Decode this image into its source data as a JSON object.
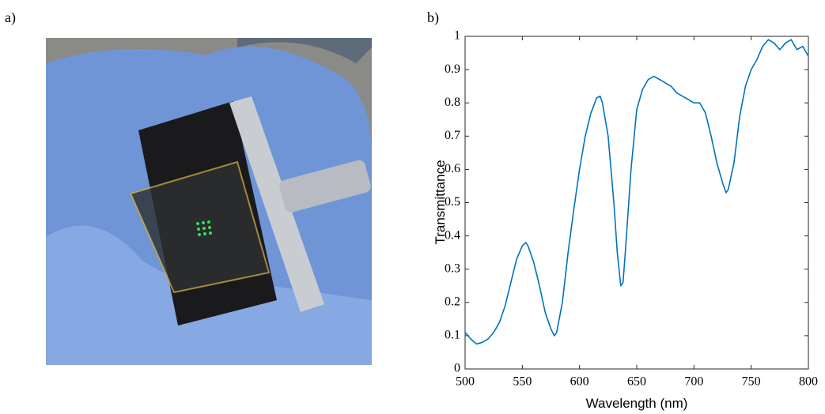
{
  "panels": [
    "a)",
    "b)"
  ],
  "chart_data": {
    "type": "line",
    "xlabel": "Wavelength (nm)",
    "ylabel": "Transmittance",
    "xlim": [
      500,
      800
    ],
    "xticks": [
      500,
      550,
      600,
      650,
      700,
      750,
      800
    ],
    "ylim": [
      0,
      1
    ],
    "yticks": [
      0,
      0.1,
      0.2,
      0.3,
      0.4,
      0.5,
      0.6,
      0.7,
      0.8,
      0.9,
      1
    ],
    "grid": false,
    "color": "#0072bd",
    "x": [
      500,
      505,
      510,
      515,
      520,
      525,
      530,
      535,
      540,
      545,
      550,
      553,
      555,
      560,
      565,
      570,
      575,
      578,
      580,
      585,
      590,
      595,
      600,
      605,
      610,
      615,
      618,
      620,
      625,
      630,
      633,
      636,
      638,
      640,
      645,
      650,
      655,
      660,
      665,
      670,
      675,
      680,
      685,
      690,
      695,
      700,
      705,
      710,
      715,
      720,
      725,
      728,
      730,
      735,
      740,
      745,
      750,
      755,
      760,
      765,
      770,
      775,
      780,
      785,
      790,
      795,
      800
    ],
    "values": [
      0.11,
      0.09,
      0.075,
      0.08,
      0.09,
      0.11,
      0.14,
      0.19,
      0.26,
      0.33,
      0.37,
      0.38,
      0.37,
      0.32,
      0.25,
      0.17,
      0.12,
      0.1,
      0.11,
      0.2,
      0.35,
      0.48,
      0.6,
      0.7,
      0.77,
      0.815,
      0.82,
      0.8,
      0.7,
      0.5,
      0.35,
      0.25,
      0.26,
      0.35,
      0.6,
      0.78,
      0.84,
      0.87,
      0.88,
      0.87,
      0.86,
      0.85,
      0.83,
      0.82,
      0.81,
      0.8,
      0.8,
      0.77,
      0.7,
      0.62,
      0.56,
      0.53,
      0.54,
      0.62,
      0.76,
      0.85,
      0.9,
      0.93,
      0.97,
      0.99,
      0.98,
      0.96,
      0.98,
      0.99,
      0.96,
      0.97,
      0.94
    ]
  }
}
